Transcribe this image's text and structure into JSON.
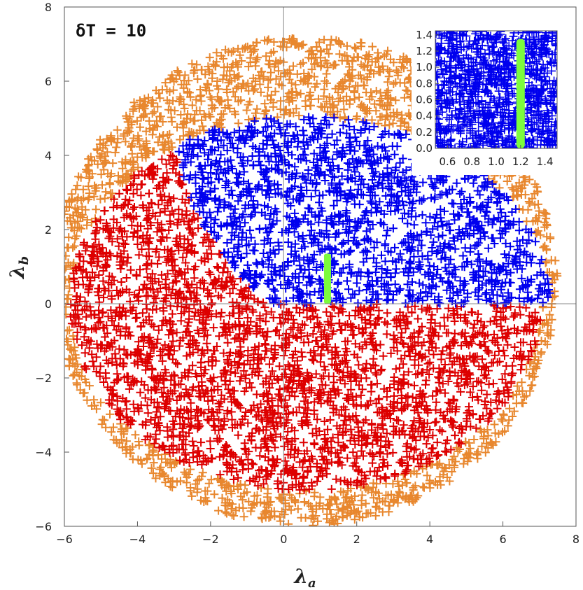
{
  "annotation": "δT = 10",
  "chart_data": [
    {
      "type": "scatter",
      "marker": "+",
      "xlabel": "λ",
      "xlabel_sub": "a",
      "ylabel": "λ",
      "ylabel_sub": "b",
      "xlim": [
        -6,
        8
      ],
      "ylim": [
        -6,
        8
      ],
      "xticks": [
        -6,
        -4,
        -2,
        0,
        2,
        4,
        6,
        8
      ],
      "yticks": [
        -6,
        -4,
        -2,
        0,
        2,
        4,
        6,
        8
      ],
      "tick_labels_x": [
        "−6",
        "−4",
        "−2",
        "0",
        "2",
        "4",
        "6",
        "8"
      ],
      "tick_labels_y": [
        "−6",
        "−4",
        "−2",
        "0",
        "2",
        "4",
        "6",
        "8"
      ],
      "grid": false,
      "zero_lines": true,
      "regions": [
        {
          "color": "#E8872E",
          "description_boundary": "outer ring",
          "outer_ellipse": {
            "cx": 0.6,
            "cy": 0.6,
            "rx": 6.9,
            "ry": 6.6
          },
          "inner_ellipse": {
            "cx": 0.6,
            "cy": 0.0,
            "rx": 6.4,
            "ry": 5.05
          }
        },
        {
          "color": "#0000EE",
          "boundary": {
            "ellipse": {
              "cx": 0.6,
              "cy": 0.0,
              "rx": 6.7,
              "ry": 5.05
            },
            "y_min": 0,
            "left_curve": [
              [
                -3.2,
                4.8
              ],
              [
                -2.5,
                2.6
              ],
              [
                -1.5,
                1.0
              ],
              [
                -0.6,
                0.15
              ],
              [
                -0.3,
                0.0
              ]
            ]
          }
        },
        {
          "color": "#DD0000",
          "boundary": {
            "ellipse": {
              "cx": 0.6,
              "cy": 0.0,
              "rx": 6.45,
              "ry": 5.05
            }
          }
        },
        {
          "color": "#7CFC3C",
          "points_x": [
            1.2
          ],
          "y_range": [
            0.0,
            1.35
          ]
        }
      ]
    },
    {
      "type": "scatter",
      "marker": "+",
      "role": "inset",
      "xlim": [
        0.5,
        1.5
      ],
      "ylim": [
        0.0,
        1.45
      ],
      "xticks": [
        0.6,
        0.8,
        1.0,
        1.2,
        1.4
      ],
      "yticks": [
        0.0,
        0.2,
        0.4,
        0.6,
        0.8,
        1.0,
        1.2,
        1.4
      ],
      "tick_labels_x": [
        "0.6",
        "0.8",
        "1.0",
        "1.2",
        "1.4"
      ],
      "tick_labels_y": [
        "0.0",
        "0.2",
        "0.4",
        "0.6",
        "0.8",
        "1.0",
        "1.2",
        "1.4"
      ],
      "regions": [
        {
          "color": "#0000EE",
          "fill": "all"
        },
        {
          "color": "#7CFC3C",
          "x": 1.2,
          "y_range": [
            0.0,
            1.35
          ]
        }
      ]
    }
  ]
}
